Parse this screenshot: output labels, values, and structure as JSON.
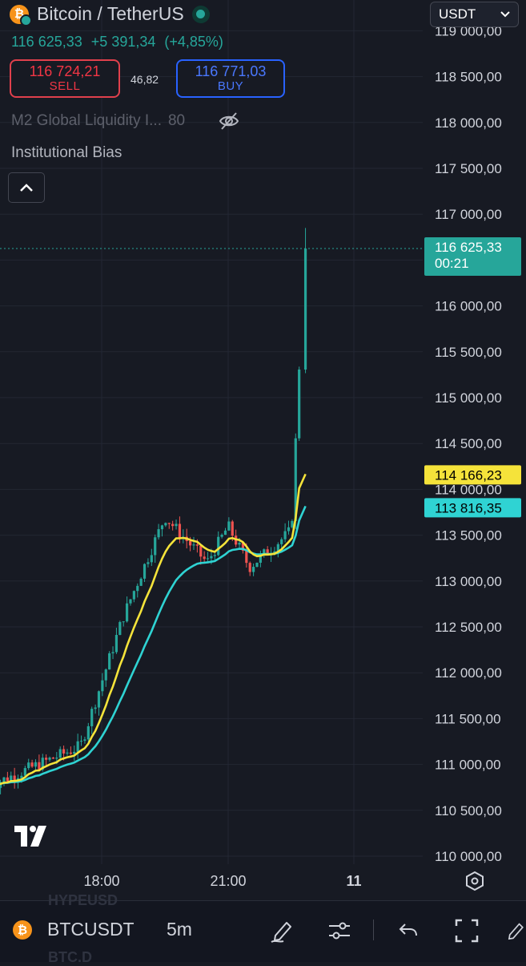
{
  "header": {
    "title": "Bitcoin / TetherUS",
    "last_price": "116 625,33",
    "change": "+5 391,34",
    "change_pct": "(+4,85%)",
    "currency": "USDT"
  },
  "trade": {
    "sell_price": "116 724,21",
    "sell_label": "SELL",
    "spread": "46,82",
    "buy_price": "116 771,03",
    "buy_label": "BUY"
  },
  "indicators": [
    {
      "name": "M2 Global Liquidity I...",
      "value": "80"
    },
    {
      "name": "Institutional Bias"
    }
  ],
  "price_scale": {
    "ticks": [
      "119 000,00",
      "118 500,00",
      "118 000,00",
      "117 500,00",
      "117 000,00",
      "116 500,00",
      "116 000,00",
      "115 500,00",
      "115 000,00",
      "114 500,00",
      "114 000,00",
      "113 500,00",
      "113 000,00",
      "112 500,00",
      "112 000,00",
      "111 500,00",
      "111 000,00",
      "110 500,00",
      "110 000,00"
    ],
    "last_price_label": "116 625,33",
    "countdown": "00:21",
    "ema_yellow_label": "114 166,23",
    "ema_cyan_label": "113 816,35"
  },
  "time_scale": {
    "ticks": [
      "18:00",
      "21:00",
      "11"
    ]
  },
  "bottom_bar": {
    "symbol": "BTCUSDT",
    "interval": "5m",
    "ghost_above": "HYPEUSD",
    "ghost_below": "BTC.D"
  },
  "colors": {
    "up": "#26a69a",
    "down": "#ef5350",
    "ema_fast": "#f5e33a",
    "ema_slow": "#2fd3d3",
    "sell": "#f23645",
    "buy": "#2962ff",
    "btc": "#f7931a"
  },
  "icons": {
    "logo": "bitcoin-icon",
    "hidden": "eye-off-icon",
    "collapse": "chevron-up-icon",
    "settings": "settings-hexagon-icon"
  },
  "chart_data": {
    "type": "candlestick",
    "series": [
      {
        "name": "",
        "kind": "candles",
        "x_range": [
          "~15:20",
          "~23:00"
        ]
      },
      {
        "name": "",
        "kind": "line",
        "last": 114166.23
      },
      {
        "name": "",
        "kind": "line",
        "last": 113816.35
      }
    ],
    "last_price": 116625.33,
    "ylim": [
      110000,
      119000
    ],
    "key_points": [
      {
        "time": "15:30",
        "price": 110800
      },
      {
        "time": "17:30",
        "price": 111200
      },
      {
        "time": "18:30",
        "price": 112600
      },
      {
        "time": "19:30",
        "price": 113700
      },
      {
        "time": "20:30",
        "price": 113200
      },
      {
        "time": "21:00",
        "price": 113600
      },
      {
        "time": "21:30",
        "price": 113150
      },
      {
        "time": "22:30",
        "price": 113550
      },
      {
        "time": "22:50",
        "price": 116800
      }
    ]
  }
}
